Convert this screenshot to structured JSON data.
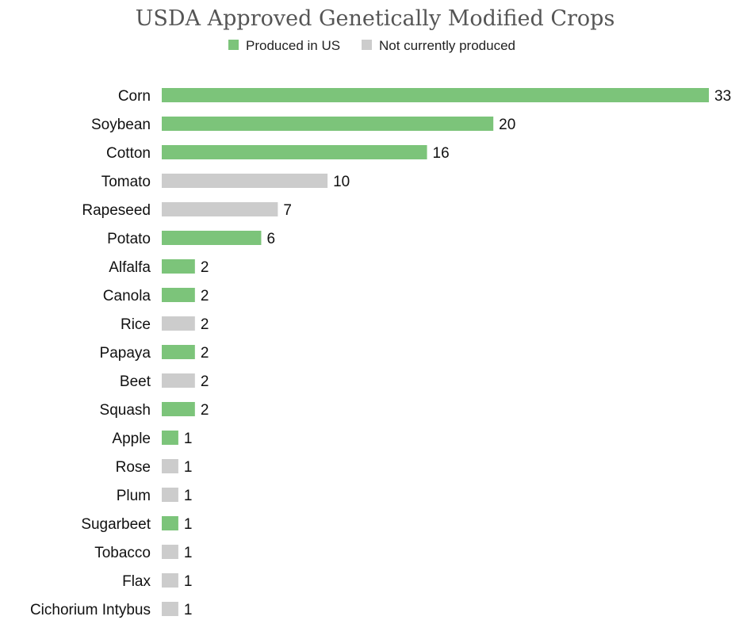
{
  "chart_data": {
    "type": "bar",
    "orientation": "horizontal",
    "title": "USDA Approved Genetically Modified Crops",
    "xlabel": "",
    "ylabel": "",
    "xlim": [
      0,
      33
    ],
    "grid": false,
    "legend_position": "top-center",
    "legend": [
      {
        "key": "produced",
        "label": "Produced in US",
        "color": "#7cc47a"
      },
      {
        "key": "not_produced",
        "label": "Not currently produced",
        "color": "#cccccc"
      }
    ],
    "categories": [
      "Corn",
      "Soybean",
      "Cotton",
      "Tomato",
      "Rapeseed",
      "Potato",
      "Alfalfa",
      "Canola",
      "Rice",
      "Papaya",
      "Beet",
      "Squash",
      "Apple",
      "Rose",
      "Plum",
      "Sugarbeet",
      "Tobacco",
      "Flax",
      "Cichorium Intybus"
    ],
    "values": [
      33,
      20,
      16,
      10,
      7,
      6,
      2,
      2,
      2,
      2,
      2,
      2,
      1,
      1,
      1,
      1,
      1,
      1,
      1
    ],
    "status": [
      "produced",
      "produced",
      "produced",
      "not_produced",
      "not_produced",
      "produced",
      "produced",
      "produced",
      "not_produced",
      "produced",
      "not_produced",
      "produced",
      "produced",
      "not_produced",
      "not_produced",
      "produced",
      "not_produced",
      "not_produced",
      "not_produced"
    ]
  }
}
